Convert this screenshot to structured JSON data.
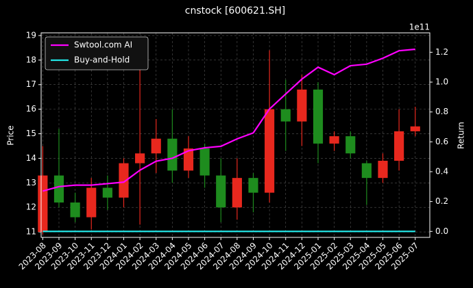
{
  "chart_data": {
    "type": "candlestick",
    "title": "cnstock [600621.SH]",
    "ylabel": "Price",
    "y2label": "Return",
    "y2_offset_label": "1e11",
    "categories": [
      "2023-08",
      "2023-09",
      "2023-10",
      "2023-11",
      "2023-12",
      "2024-01",
      "2024-02",
      "2024-03",
      "2024-04",
      "2024-05",
      "2024-06",
      "2024-07",
      "2024-08",
      "2024-09",
      "2024-10",
      "2024-11",
      "2024-12",
      "2025-01",
      "2025-02",
      "2025-03",
      "2025-04",
      "2025-05",
      "2025-06",
      "2025-07"
    ],
    "open": [
      11.0,
      13.3,
      12.2,
      11.6,
      12.8,
      12.4,
      13.8,
      14.2,
      14.8,
      13.5,
      14.4,
      13.3,
      12.0,
      13.2,
      12.6,
      16.0,
      15.5,
      16.8,
      14.6,
      14.9,
      13.8,
      13.2,
      13.9,
      15.1
    ],
    "high": [
      14.5,
      15.2,
      12.6,
      13.2,
      13.3,
      14.0,
      17.6,
      15.6,
      16.0,
      14.9,
      14.6,
      14.0,
      14.0,
      13.4,
      18.4,
      17.2,
      17.4,
      17.1,
      15.1,
      15.1,
      13.9,
      14.2,
      16.0,
      16.1
    ],
    "low": [
      10.9,
      12.0,
      11.4,
      11.1,
      11.9,
      12.0,
      11.3,
      13.4,
      13.0,
      13.2,
      12.8,
      11.4,
      11.5,
      11.8,
      12.2,
      14.3,
      14.5,
      13.8,
      14.3,
      14.0,
      12.1,
      13.0,
      13.5,
      14.9
    ],
    "close": [
      13.3,
      12.2,
      11.6,
      12.8,
      12.4,
      13.8,
      14.2,
      14.8,
      13.5,
      14.4,
      13.3,
      12.0,
      13.2,
      12.6,
      16.0,
      15.5,
      16.8,
      14.6,
      14.9,
      14.2,
      13.2,
      13.9,
      15.1,
      15.3
    ],
    "up_color": "#e8281e",
    "down_color": "#1e8c1e",
    "series": [
      {
        "name": "Swtool.com AI",
        "color": "#ff00ff",
        "axis": "y2",
        "values": [
          0.27,
          0.3,
          0.31,
          0.31,
          0.32,
          0.33,
          0.41,
          0.47,
          0.49,
          0.54,
          0.56,
          0.57,
          0.62,
          0.66,
          0.82,
          0.92,
          1.02,
          1.1,
          1.05,
          1.11,
          1.12,
          1.16,
          1.21,
          1.22
        ]
      },
      {
        "name": "Buy-and-Hold",
        "color": "#22e5e5",
        "axis": "y2",
        "values": [
          0,
          0,
          0,
          0,
          0,
          0,
          0,
          0,
          0,
          0,
          0,
          0,
          0,
          0,
          0,
          0,
          0,
          0,
          0,
          0,
          0,
          0,
          0,
          0
        ]
      }
    ],
    "ylim": [
      10.78,
      19.11
    ],
    "yticks": [
      11,
      12,
      13,
      14,
      15,
      16,
      17,
      18,
      19
    ],
    "y2lim": [
      -0.04,
      1.33
    ],
    "y2ticks": [
      {
        "value": 0,
        "label": "0.0"
      },
      0.2,
      0.4,
      0.6,
      0.8,
      {
        "value": 1,
        "label": "1.0"
      },
      1.2
    ],
    "grid": true,
    "legend": "upper left"
  }
}
